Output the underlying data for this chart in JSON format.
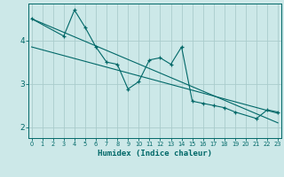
{
  "xlabel": "Humidex (Indice chaleur)",
  "ylabel": "",
  "background_color": "#cce8e8",
  "line_color": "#006868",
  "grid_color": "#aacccc",
  "x_values": [
    0,
    1,
    2,
    3,
    4,
    5,
    6,
    7,
    8,
    9,
    10,
    11,
    12,
    13,
    14,
    15,
    16,
    17,
    18,
    19,
    20,
    21,
    22,
    23
  ],
  "line_data": [
    4.5,
    null,
    null,
    4.1,
    4.7,
    4.3,
    3.85,
    3.5,
    3.45,
    2.88,
    3.05,
    3.55,
    3.6,
    3.45,
    3.85,
    2.6,
    2.55,
    2.5,
    2.45,
    2.35,
    null,
    2.2,
    2.4,
    2.35
  ],
  "trend1_x": [
    0,
    23
  ],
  "trend1_y": [
    4.5,
    2.1
  ],
  "trend2_x": [
    0,
    23
  ],
  "trend2_y": [
    3.85,
    2.32
  ],
  "ylim": [
    1.75,
    4.85
  ],
  "xlim": [
    -0.3,
    23.3
  ],
  "yticks": [
    2,
    3,
    4
  ],
  "xticks": [
    0,
    1,
    2,
    3,
    4,
    5,
    6,
    7,
    8,
    9,
    10,
    11,
    12,
    13,
    14,
    15,
    16,
    17,
    18,
    19,
    20,
    21,
    22,
    23
  ]
}
